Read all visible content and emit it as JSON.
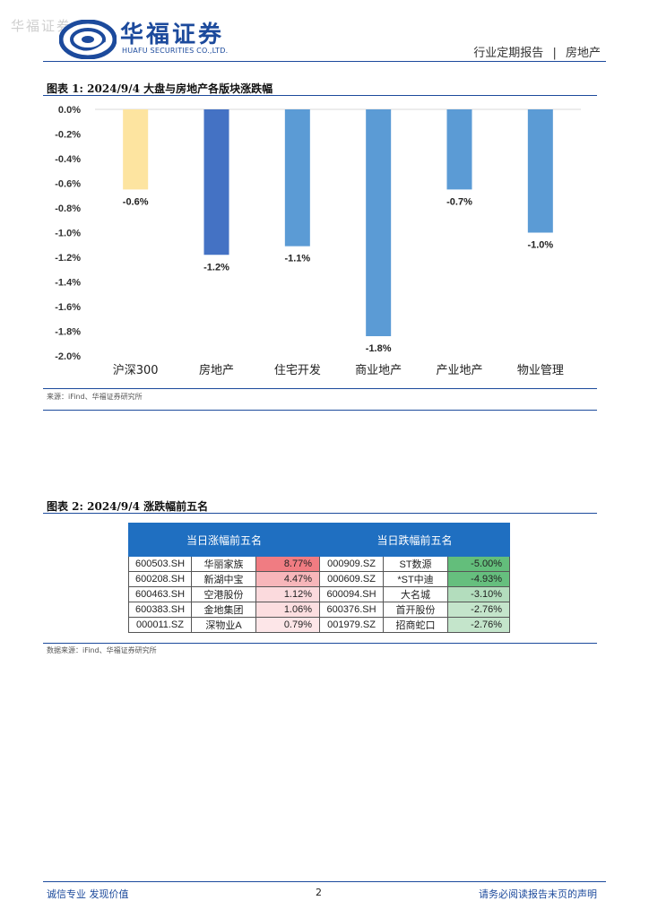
{
  "watermark": "华福证券",
  "logo": {
    "name": "华福证券",
    "subtitle": "HUAFU SECURITIES CO.,LTD."
  },
  "header": {
    "report_type": "行业定期报告",
    "separator": "|",
    "industry": "房地产"
  },
  "figure1": {
    "title": "图表 1:  2024/9/4 大盘与房地产各版块涨跌幅",
    "source": "来源：iFind、华福证券研究所"
  },
  "chart_data": {
    "type": "bar",
    "categories": [
      "沪深300",
      "房地产",
      "住宅开发",
      "商业地产",
      "产业地产",
      "物业管理"
    ],
    "values": [
      -0.65,
      -1.18,
      -1.11,
      -1.84,
      -0.65,
      -1.0
    ],
    "data_labels": [
      "-0.6%",
      "-1.2%",
      "-1.1%",
      "-1.8%",
      "-0.7%",
      "-1.0%"
    ],
    "colors": [
      "#fde4a0",
      "#4472c4",
      "#5b9bd5",
      "#5b9bd5",
      "#5b9bd5",
      "#5b9bd5"
    ],
    "ylim": [
      -2.0,
      0.0
    ],
    "yticks": [
      "0.0%",
      "-0.2%",
      "-0.4%",
      "-0.6%",
      "-0.8%",
      "-1.0%",
      "-1.2%",
      "-1.4%",
      "-1.6%",
      "-1.8%",
      "-2.0%"
    ],
    "title": "",
    "xlabel": "",
    "ylabel": "",
    "grid": false
  },
  "figure2": {
    "title": "图表 2:  2024/9/4 涨跌幅前五名",
    "source": "数据来源：iFind、华福证券研究所",
    "gainers_header": "当日涨幅前五名",
    "losers_header": "当日跌幅前五名",
    "gainers": [
      {
        "code": "600503.SH",
        "name": "华丽家族",
        "change": "8.77%",
        "color": "#f07c82"
      },
      {
        "code": "600208.SH",
        "name": "新湖中宝",
        "change": "4.47%",
        "color": "#f7b6ba"
      },
      {
        "code": "600463.SH",
        "name": "空港股份",
        "change": "1.12%",
        "color": "#fbdadd"
      },
      {
        "code": "600383.SH",
        "name": "金地集团",
        "change": "1.06%",
        "color": "#fcdee0"
      },
      {
        "code": "000011.SZ",
        "name": "深物业A",
        "change": "0.79%",
        "color": "#fde6e8"
      }
    ],
    "losers": [
      {
        "code": "000909.SZ",
        "name": "ST数源",
        "change": "-5.00%",
        "color": "#63be7b"
      },
      {
        "code": "000609.SZ",
        "name": "*ST中迪",
        "change": "-4.93%",
        "color": "#66bf7e"
      },
      {
        "code": "600094.SH",
        "name": "大名城",
        "change": "-3.10%",
        "color": "#b3ddbd"
      },
      {
        "code": "600376.SH",
        "name": "首开股份",
        "change": "-2.76%",
        "color": "#c4e5cb"
      },
      {
        "code": "001979.SZ",
        "name": "招商蛇口",
        "change": "-2.76%",
        "color": "#c4e5cb"
      }
    ]
  },
  "footer": {
    "left": "诚信专业  发现价值",
    "page": "2",
    "right": "请务必阅读报告末页的声明"
  }
}
